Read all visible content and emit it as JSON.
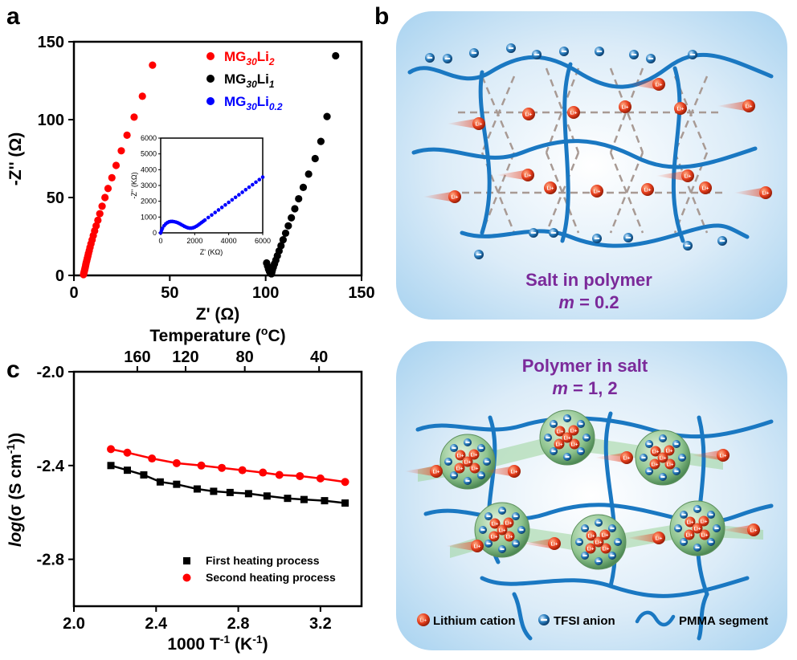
{
  "panels": {
    "a": "a",
    "b": "b",
    "c": "c"
  },
  "chart_data": [
    {
      "id": "a",
      "type": "scatter",
      "xlabel": "Z' (Ω)",
      "ylabel": "-Z'' (Ω)",
      "xlim": [
        0,
        150
      ],
      "ylim": [
        0,
        150
      ],
      "xticks": [
        "0",
        "50",
        "100",
        "150"
      ],
      "yticks": [
        "0",
        "50",
        "100",
        "150"
      ],
      "legend_position": "top-right",
      "series": [
        {
          "name": "MG30Li2",
          "legend": {
            "base": "MG",
            "sub1": "30",
            "mid": "Li",
            "sub2": "2"
          },
          "color": "#ff0000",
          "x": [
            5,
            5.2,
            5.4,
            5.6,
            5.8,
            6.0,
            6.2,
            6.4,
            6.7,
            7.0,
            7.3,
            7.6,
            8.0,
            8.4,
            8.9,
            9.5,
            10.1,
            10.8,
            11.6,
            12.5,
            13.5,
            14.7,
            16.2,
            17.8,
            19.8,
            22.0,
            24.7,
            27.7,
            31.4,
            35.7,
            41.0
          ],
          "y": [
            0.5,
            1.5,
            2.5,
            3.5,
            4.6,
            5.7,
            6.9,
            8.1,
            9.5,
            11.0,
            12.5,
            14.1,
            16.0,
            18.0,
            20.3,
            22.8,
            25.6,
            28.6,
            31.8,
            35.4,
            39.6,
            44.4,
            50.0,
            55.8,
            62.7,
            70.6,
            80.0,
            90.0,
            101.6,
            115.0,
            135.0
          ]
        },
        {
          "name": "MG30Li1",
          "legend": {
            "base": "MG",
            "sub1": "30",
            "mid": "Li",
            "sub2": "1"
          },
          "color": "#000000",
          "x": [
            100.5,
            101.0,
            101.5,
            102.0,
            102.5,
            103.0,
            103.2,
            103.5,
            104.0,
            104.6,
            105.3,
            106.1,
            107.0,
            108.0,
            109.1,
            110.4,
            111.8,
            113.4,
            115.2,
            117.2,
            119.6,
            122.4,
            125.8,
            128.8,
            132.0,
            136.5
          ],
          "y": [
            8,
            6,
            4,
            2.5,
            1.5,
            1,
            2,
            3.5,
            5.3,
            7.4,
            9.8,
            12.6,
            15.7,
            19.1,
            22.9,
            27.1,
            31.8,
            37.0,
            42.8,
            49.2,
            56.5,
            65.0,
            75.0,
            86.0,
            102.0,
            141.0
          ]
        },
        {
          "name": "MG30Li0.2",
          "legend": {
            "base": "MG",
            "sub1": "30",
            "mid": "Li",
            "sub2": "0.2"
          },
          "color": "#0000ff",
          "x": [],
          "y": []
        }
      ],
      "inset": {
        "xlabel": "Z' (KΩ)",
        "ylabel": "-Z'' (KΩ)",
        "xlim": [
          0,
          6000
        ],
        "ylim": [
          0,
          6000
        ],
        "xticks": [
          "0",
          "2000",
          "4000",
          "6000"
        ],
        "yticks": [
          "0",
          "1000",
          "2000",
          "3000",
          "4000",
          "5000",
          "6000"
        ],
        "series": [
          {
            "name": "MG30Li0.2",
            "color": "#0000ff",
            "x": [
              0,
              50,
              100,
              200,
              300,
              400,
              500,
              600,
              700,
              800,
              900,
              1000,
              1100,
              1200,
              1300,
              1400,
              1500,
              1600,
              1700,
              1800,
              1900,
              2000,
              2100,
              2200,
              2300,
              2400,
              2500,
              2600,
              2800,
              3000,
              3200,
              3400,
              3600,
              3800,
              4000,
              4200,
              4400,
              4600,
              4800,
              5000,
              5200,
              5400,
              5600,
              5800,
              6000
            ],
            "y": [
              0,
              150,
              280,
              450,
              570,
              650,
              700,
              720,
              720,
              705,
              680,
              640,
              590,
              530,
              470,
              410,
              360,
              320,
              300,
              300,
              320,
              360,
              420,
              490,
              570,
              650,
              730,
              810,
              970,
              1130,
              1290,
              1450,
              1610,
              1770,
              1930,
              2090,
              2250,
              2410,
              2570,
              2730,
              2890,
              3050,
              3210,
              3370,
              3530
            ]
          }
        ]
      }
    },
    {
      "id": "c",
      "type": "line",
      "xlabel": "1000 T-1 (K-1)",
      "xlabel_parts": {
        "base": "1000 T",
        "sup1": "-1",
        "mid": " (K",
        "sup2": "-1",
        "end": ")"
      },
      "ylabel": "log(σ (S cm-1))",
      "ylabel_parts": {
        "italic": "log",
        "rest": "(σ  (S cm",
        "sup": "-1",
        "end": "))"
      },
      "top_xlabel": "Temperature (oC)",
      "top_xlabel_parts": {
        "base": "Temperature (",
        "sup": "o",
        "end": "C)"
      },
      "xlim": [
        2.0,
        3.4
      ],
      "ylim": [
        -3.0,
        -2.0
      ],
      "xticks": [
        "2.0",
        "2.4",
        "2.8",
        "3.2"
      ],
      "yticks": [
        "-2.0",
        "-2.4",
        "-2.8"
      ],
      "top_xticks": [
        "160",
        "120",
        "80",
        "40"
      ],
      "top_xtick_positions_C": [
        160,
        120,
        80,
        40
      ],
      "legend_position": "bottom-right",
      "series": [
        {
          "name": "First heating process",
          "color": "#000000",
          "marker": "square",
          "x": [
            2.18,
            2.26,
            2.34,
            2.42,
            2.5,
            2.6,
            2.68,
            2.76,
            2.85,
            2.94,
            3.04,
            3.12,
            3.22,
            3.32
          ],
          "y": [
            -2.4,
            -2.42,
            -2.44,
            -2.47,
            -2.48,
            -2.5,
            -2.51,
            -2.515,
            -2.52,
            -2.53,
            -2.54,
            -2.545,
            -2.55,
            -2.56
          ]
        },
        {
          "name": "Second heating process",
          "color": "#ff0000",
          "marker": "circle",
          "x": [
            2.18,
            2.26,
            2.38,
            2.5,
            2.62,
            2.72,
            2.82,
            2.92,
            3.0,
            3.1,
            3.2,
            3.32
          ],
          "y": [
            -2.33,
            -2.345,
            -2.37,
            -2.39,
            -2.4,
            -2.41,
            -2.42,
            -2.43,
            -2.44,
            -2.445,
            -2.455,
            -2.47
          ]
        }
      ]
    }
  ],
  "scheme_b": {
    "top": {
      "title": "Salt in polymer",
      "subtitle_var": "m",
      "subtitle_value": " = 0.2"
    },
    "bottom": {
      "title": "Polymer in salt",
      "subtitle_var": "m",
      "subtitle_value": " = 1, 2"
    },
    "legend": {
      "lithium": "Lithium cation",
      "tfsi": "TFSI anion",
      "pmma": "PMMA segment",
      "li_symbol": "Li+"
    },
    "colors": {
      "box": "#a9d3f0",
      "polymer": "#1a78c2",
      "lithium": "#e8401e",
      "tfsi": "#2a7fc0",
      "cluster": "#8fc48f",
      "title": "#7b2a9a"
    }
  }
}
